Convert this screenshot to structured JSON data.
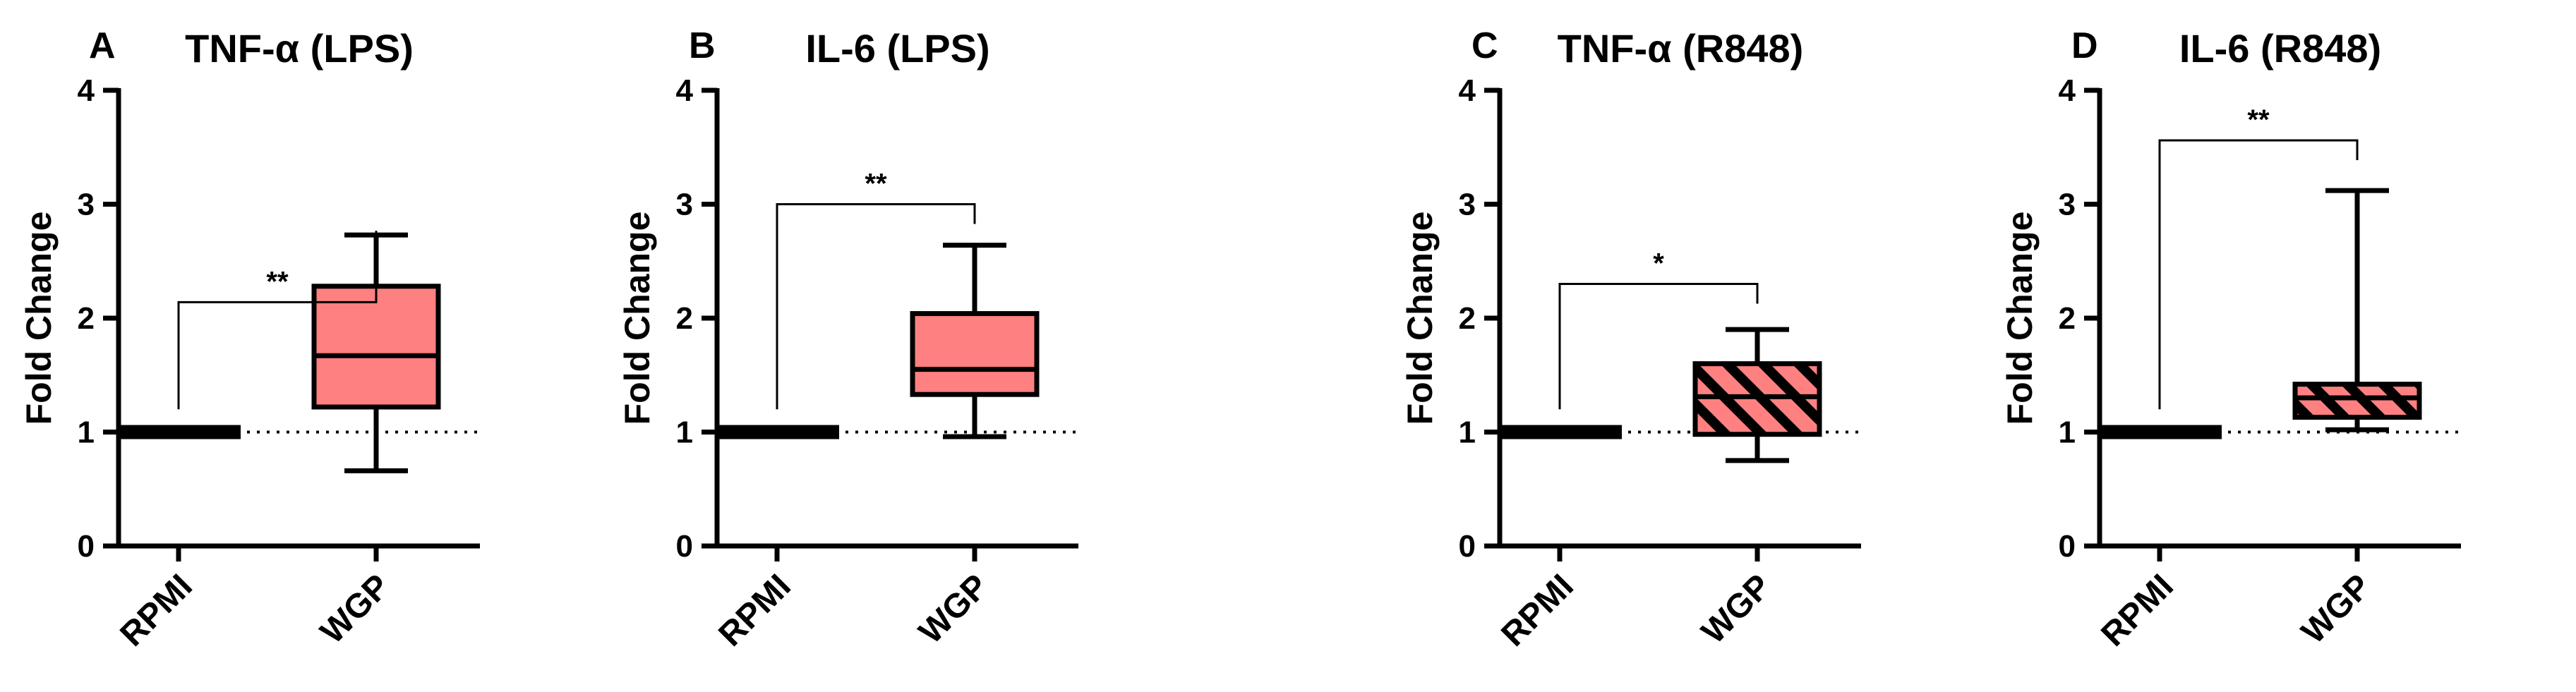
{
  "chart_data": [
    {
      "type": "box",
      "panel_label": "A",
      "title": "TNF-α (LPS)",
      "ylabel": "Fold Change",
      "ylim": [
        0,
        4
      ],
      "yticks": [
        "0",
        "1",
        "2",
        "3",
        "4"
      ],
      "categories": [
        "RPMI",
        "WGP"
      ],
      "reference_line": 1,
      "hatched": false,
      "boxes": [
        {
          "category": "RPMI",
          "min": 1,
          "q1": 1,
          "median": 1,
          "q3": 1,
          "max": 1,
          "color": "#000000"
        },
        {
          "category": "WGP",
          "min": 0.66,
          "q1": 1.22,
          "median": 1.67,
          "q3": 2.28,
          "max": 2.73,
          "color": "#ff8080"
        }
      ],
      "significance": {
        "label": "**",
        "bracket_y": 2.14,
        "from": "RPMI",
        "to": "WGP"
      }
    },
    {
      "type": "box",
      "panel_label": "B",
      "title": "IL-6 (LPS)",
      "ylabel": "Fold Change",
      "ylim": [
        0,
        4
      ],
      "yticks": [
        "0",
        "1",
        "2",
        "3",
        "4"
      ],
      "categories": [
        "RPMI",
        "WGP"
      ],
      "reference_line": 1,
      "hatched": false,
      "boxes": [
        {
          "category": "RPMI",
          "min": 1,
          "q1": 1,
          "median": 1,
          "q3": 1,
          "max": 1,
          "color": "#000000"
        },
        {
          "category": "WGP",
          "min": 0.96,
          "q1": 1.33,
          "median": 1.55,
          "q3": 2.04,
          "max": 2.64,
          "color": "#ff8080"
        }
      ],
      "significance": {
        "label": "**",
        "bracket_y": 3.0,
        "from": "RPMI",
        "to": "WGP"
      }
    },
    {
      "type": "box",
      "panel_label": "C",
      "title": "TNF-α (R848)",
      "ylabel": "Fold Change",
      "ylim": [
        0,
        4
      ],
      "yticks": [
        "0",
        "1",
        "2",
        "3",
        "4"
      ],
      "categories": [
        "RPMI",
        "WGP"
      ],
      "reference_line": 1,
      "hatched": true,
      "boxes": [
        {
          "category": "RPMI",
          "min": 1,
          "q1": 1,
          "median": 1,
          "q3": 1,
          "max": 1,
          "color": "#000000"
        },
        {
          "category": "WGP",
          "min": 0.75,
          "q1": 0.98,
          "median": 1.31,
          "q3": 1.6,
          "max": 1.9,
          "color": "#ff8080"
        }
      ],
      "significance": {
        "label": "*",
        "bracket_y": 2.3,
        "from": "RPMI",
        "to": "WGP"
      }
    },
    {
      "type": "box",
      "panel_label": "D",
      "title": "IL-6 (R848)",
      "ylabel": "Fold Change",
      "ylim": [
        0,
        4
      ],
      "yticks": [
        "0",
        "1",
        "2",
        "3",
        "4"
      ],
      "categories": [
        "RPMI",
        "WGP"
      ],
      "reference_line": 1,
      "hatched": true,
      "boxes": [
        {
          "category": "RPMI",
          "min": 1,
          "q1": 1,
          "median": 1,
          "q3": 1,
          "max": 1,
          "color": "#000000"
        },
        {
          "category": "WGP",
          "min": 1.02,
          "q1": 1.13,
          "median": 1.3,
          "q3": 1.42,
          "max": 3.12,
          "color": "#ff8080"
        }
      ],
      "significance": {
        "label": "**",
        "bracket_y": 3.56,
        "from": "RPMI",
        "to": "WGP"
      }
    }
  ]
}
